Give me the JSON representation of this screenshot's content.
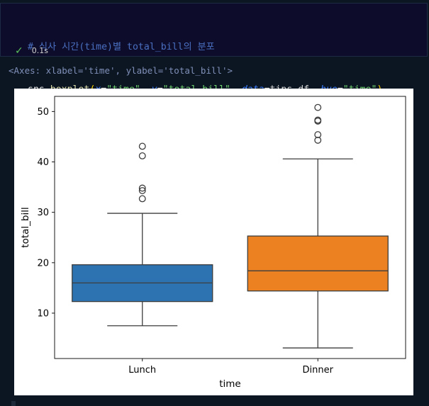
{
  "code_cell": {
    "comment": "# 식사 시간(time)별 total_bill의 분포",
    "call": {
      "object": "sns",
      "dot": ".",
      "function": "boxplot",
      "open": "(",
      "close": ")",
      "args": [
        {
          "param": "x",
          "eq": "=",
          "value": "\"time\"",
          "kind": "str",
          "sep": ", "
        },
        {
          "param": "y",
          "eq": "=",
          "value": "\"total_bill\"",
          "kind": "str",
          "sep": ", "
        },
        {
          "param": "data",
          "eq": "=",
          "value": "tips_df",
          "kind": "plain",
          "sep": ", "
        },
        {
          "param": "hue",
          "eq": "=",
          "value": "\"time\"",
          "kind": "str",
          "sep": ""
        }
      ]
    },
    "status_icon": "check-icon",
    "exec_time": "0.1s"
  },
  "output_text": "<Axes: xlabel='time', ylabel='total_bill'>",
  "colors": {
    "lunch_box": "#2e73b1",
    "dinner_box": "#eb8121",
    "line": "#3d3d3d"
  },
  "chart_data": {
    "type": "box",
    "xlabel": "time",
    "ylabel": "total_bill",
    "ylim": [
      1,
      53
    ],
    "yticks": [
      10,
      20,
      30,
      40,
      50
    ],
    "categories": [
      "Lunch",
      "Dinner"
    ],
    "boxes": [
      {
        "category": "Lunch",
        "whisker_low": 7.5,
        "q1": 12.3,
        "median": 16.0,
        "q3": 19.6,
        "whisker_high": 29.8,
        "outliers": [
          32.7,
          34.3,
          34.8,
          41.2,
          43.1
        ],
        "color": "#2e73b1"
      },
      {
        "category": "Dinner",
        "whisker_low": 3.1,
        "q1": 14.4,
        "median": 18.4,
        "q3": 25.3,
        "whisker_high": 40.6,
        "outliers": [
          44.3,
          45.4,
          48.1,
          48.3,
          50.8
        ],
        "color": "#eb8121"
      }
    ]
  }
}
